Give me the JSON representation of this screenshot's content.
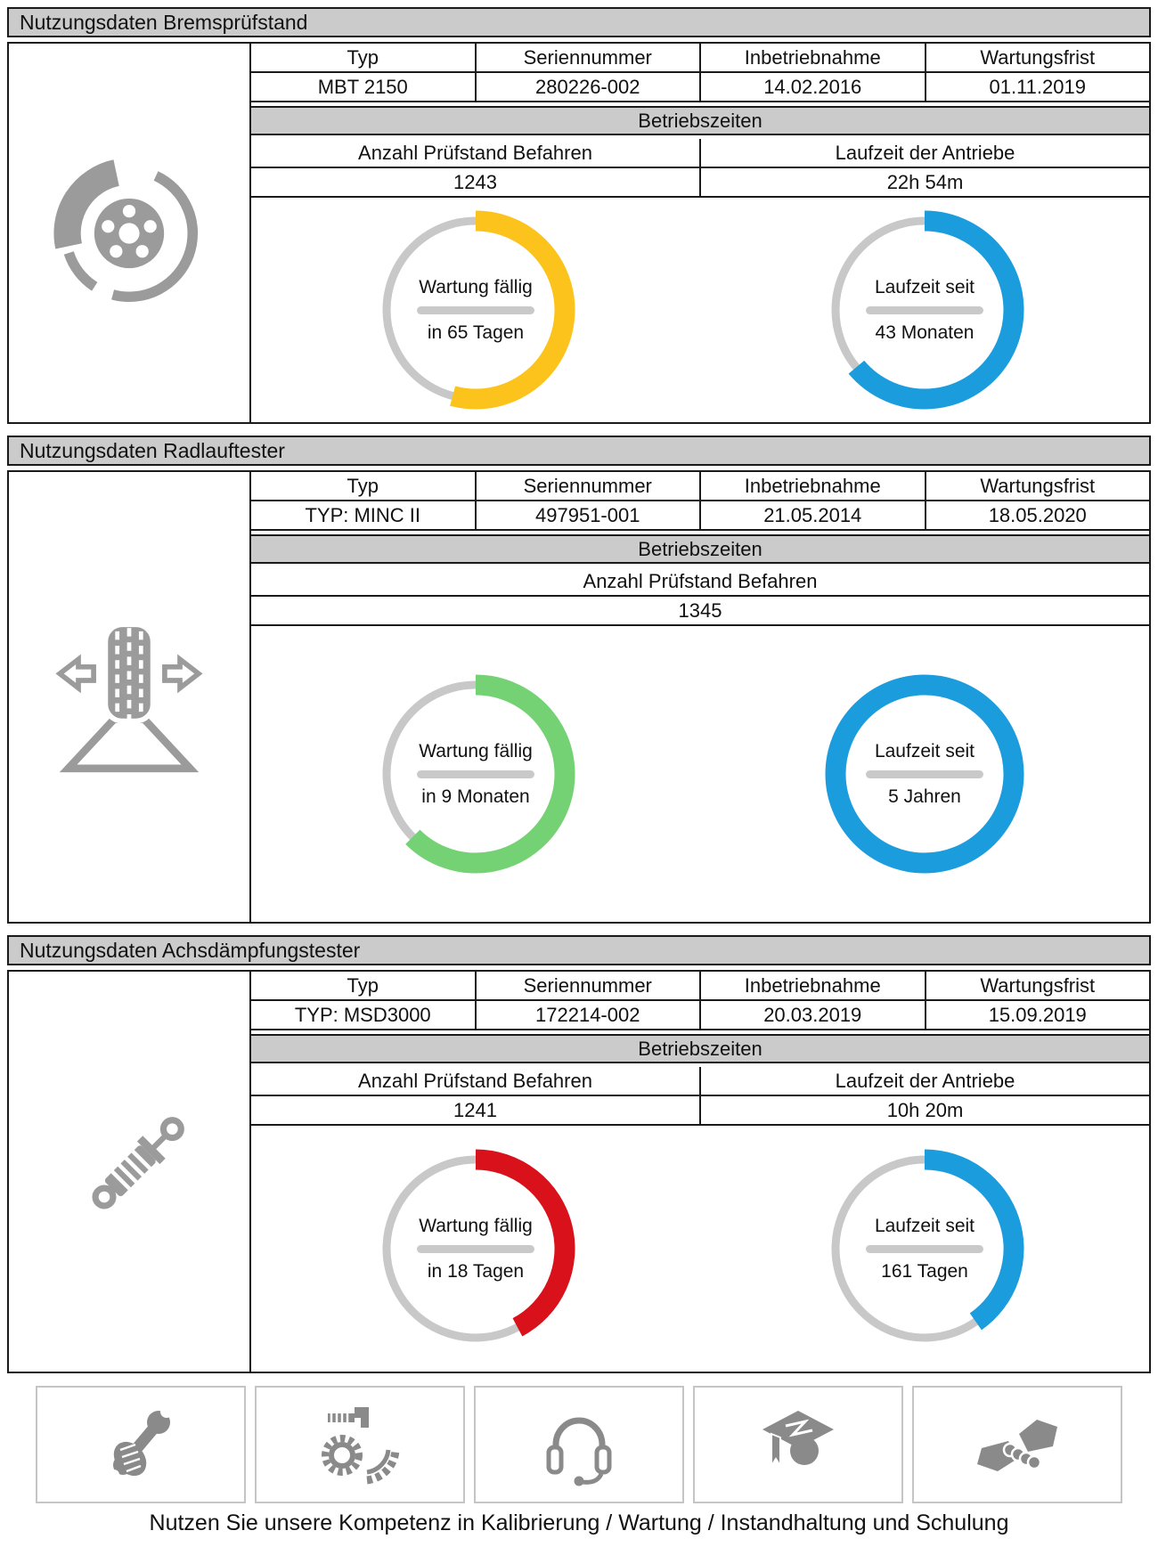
{
  "sections": [
    {
      "id": "bremspruefstand",
      "title": "Nutzungsdaten Bremsprüfstand",
      "icon": "brake-disc-icon",
      "table": {
        "headers": [
          "Typ",
          "Seriennummer",
          "Inbetriebnahme",
          "Wartungsfrist"
        ],
        "values": [
          "MBT 2150",
          "280226-002",
          "14.02.2016",
          "01.11.2019"
        ]
      },
      "betriebszeiten_label": "Betriebszeiten",
      "metrics": [
        {
          "label": "Anzahl Prüfstand Befahren",
          "value": "1243"
        },
        {
          "label": "Laufzeit der Antriebe",
          "value": "22h 54m"
        }
      ],
      "gauges": [
        {
          "name": "maintenance",
          "line1": "Wartung fällig",
          "line2": "in 65 Tagen",
          "color": "#FBC31B",
          "sweep_deg": 195
        },
        {
          "name": "runtime",
          "line1": "Laufzeit seit",
          "line2": "43 Monaten",
          "color": "#1B9CDD",
          "sweep_deg": 230
        }
      ]
    },
    {
      "id": "radlauftester",
      "title": "Nutzungsdaten Radlauftester",
      "icon": "wheel-alignment-icon",
      "table": {
        "headers": [
          "Typ",
          "Seriennummer",
          "Inbetriebnahme",
          "Wartungsfrist"
        ],
        "values": [
          "TYP: MINC II",
          "497951-001",
          "21.05.2014",
          "18.05.2020"
        ]
      },
      "betriebszeiten_label": "Betriebszeiten",
      "metrics": [
        {
          "label": "Anzahl Prüfstand Befahren",
          "value": "1345"
        }
      ],
      "gauges": [
        {
          "name": "maintenance",
          "line1": "Wartung fällig",
          "line2": "in 9 Monaten",
          "color": "#74D274",
          "sweep_deg": 225
        },
        {
          "name": "runtime",
          "line1": "Laufzeit seit",
          "line2": "5 Jahren",
          "color": "#1B9CDD",
          "sweep_deg": 360
        }
      ]
    },
    {
      "id": "achsdaempfungstester",
      "title": "Nutzungsdaten Achsdämpfungstester",
      "icon": "shock-absorber-icon",
      "table": {
        "headers": [
          "Typ",
          "Seriennummer",
          "Inbetriebnahme",
          "Wartungsfrist"
        ],
        "values": [
          "TYP: MSD3000",
          "172214-002",
          "20.03.2019",
          "15.09.2019"
        ]
      },
      "betriebszeiten_label": "Betriebszeiten",
      "metrics": [
        {
          "label": "Anzahl Prüfstand Befahren",
          "value": "1241"
        },
        {
          "label": "Laufzeit der Antriebe",
          "value": "10h 20m"
        }
      ],
      "gauges": [
        {
          "name": "maintenance",
          "line1": "Wartung fällig",
          "line2": "in 18 Tagen",
          "color": "#D8111A",
          "sweep_deg": 152
        },
        {
          "name": "runtime",
          "line1": "Laufzeit seit",
          "line2": "161 Tagen",
          "color": "#1B9CDD",
          "sweep_deg": 145
        }
      ]
    }
  ],
  "services": {
    "items": [
      {
        "icon": "wrench-hand-icon"
      },
      {
        "icon": "gear-screw-icon"
      },
      {
        "icon": "headset-icon"
      },
      {
        "icon": "graduation-cap-icon"
      },
      {
        "icon": "handshake-icon"
      }
    ],
    "caption": "Nutzen Sie unsere Kompetenz in Kalibrierung / Wartung / Instandhaltung und Schulung"
  },
  "colors": {
    "gauge_track": "#C8C8C8",
    "header_bar": "#CBCBCB",
    "panel_icon": "#9B9B9B",
    "service_icon": "#8A8A8A",
    "border": "#1A1A1A"
  }
}
